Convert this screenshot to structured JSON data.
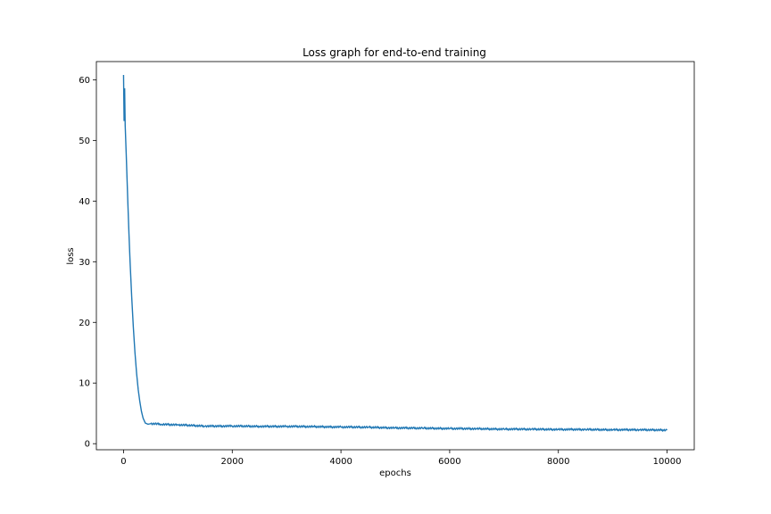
{
  "chart_data": {
    "type": "line",
    "title": "Loss graph for end-to-end training",
    "xlabel": "epochs",
    "ylabel": "loss",
    "xlim": [
      -500,
      10500
    ],
    "ylim": [
      -1,
      63
    ],
    "xticks": [
      0,
      2000,
      4000,
      6000,
      8000,
      10000
    ],
    "yticks": [
      0,
      10,
      20,
      30,
      40,
      50,
      60
    ],
    "xtick_labels": [
      "0",
      "2000",
      "4000",
      "6000",
      "8000",
      "10000"
    ],
    "ytick_labels": [
      "0",
      "10",
      "20",
      "30",
      "40",
      "50",
      "60"
    ],
    "grid": false,
    "legend": false,
    "series": [
      {
        "color": "#1f77b4",
        "x": [
          0,
          10,
          20,
          30,
          40,
          50,
          60,
          80,
          100,
          120,
          150,
          180,
          210,
          240,
          270,
          300,
          330,
          360,
          400,
          450,
          500,
          700,
          1000,
          1500,
          2000,
          2500,
          3000,
          3500,
          4000,
          4500,
          5000,
          5500,
          6000,
          6500,
          7000,
          7500,
          8000,
          8500,
          9000,
          9500,
          10000
        ],
        "values": [
          60.8,
          53.2,
          58.6,
          52.5,
          50.0,
          47.5,
          44.8,
          39.5,
          34.5,
          30.0,
          24.2,
          19.2,
          15.0,
          11.6,
          8.9,
          6.9,
          5.3,
          4.2,
          3.4,
          3.2,
          3.3,
          3.2,
          3.1,
          2.9,
          2.9,
          2.85,
          2.85,
          2.8,
          2.75,
          2.7,
          2.6,
          2.55,
          2.5,
          2.45,
          2.4,
          2.38,
          2.35,
          2.33,
          2.3,
          2.28,
          2.25
        ]
      }
    ]
  }
}
